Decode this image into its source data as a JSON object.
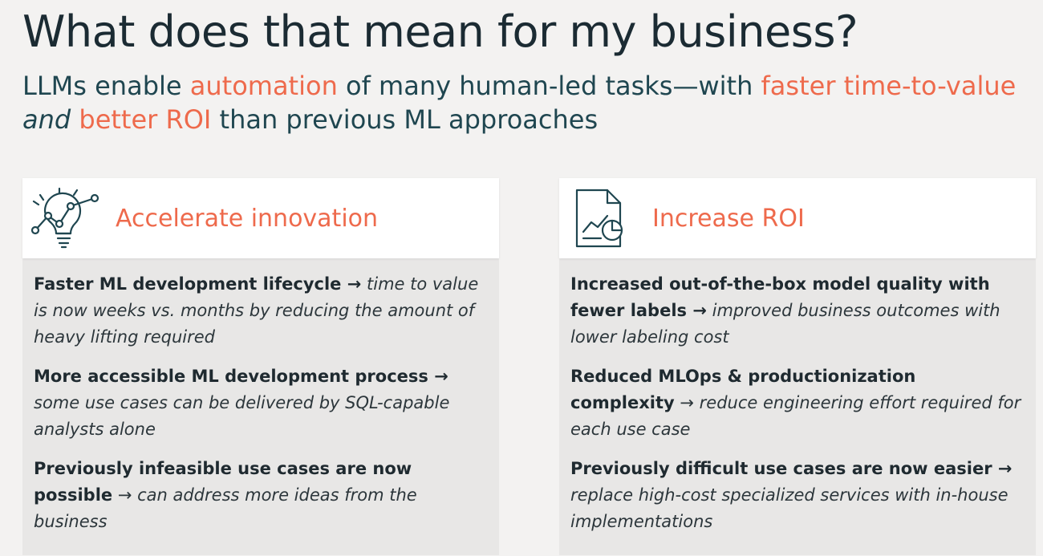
{
  "header": {
    "title": "What does that mean for my business?",
    "subtitle": {
      "p1": "LLMs enable ",
      "a1": "automation",
      "p2": " of many human-led tasks—with ",
      "a2": "faster time-to-value",
      "p3": " ",
      "em": "and",
      "p4": " ",
      "a3": "better ROI",
      "p5": " than previous ML approaches"
    }
  },
  "colors": {
    "accent": "#ee6a4c",
    "dark": "#1b2b33",
    "card_bg": "#e8e7e6"
  },
  "cards": [
    {
      "icon": "lightbulb-chart-icon",
      "title": "Accelerate innovation",
      "items": [
        {
          "bold": "Faster ML development lifecycle →",
          "italic": " time to value is now weeks vs. months by reducing the amount of heavy lifting required"
        },
        {
          "bold": "More accessible ML development process →",
          "italic": " some use cases can be delivered by SQL-capable analysts alone"
        },
        {
          "bold": "Previously infeasible use cases are now possible",
          "italic": " → can address more ideas from the business"
        }
      ]
    },
    {
      "icon": "document-chart-icon",
      "title": "Increase ROI",
      "items": [
        {
          "bold": "Increased out-of-the-box model quality with fewer labels →",
          "italic": " improved business outcomes with lower labeling cost"
        },
        {
          "bold": "Reduced MLOps & productionization complexity",
          "italic": " → reduce engineering effort required for each use case"
        },
        {
          "bold": "Previously difficult use cases are now easier →",
          "italic": " replace high-cost specialized services with in-house implementations"
        }
      ]
    }
  ]
}
